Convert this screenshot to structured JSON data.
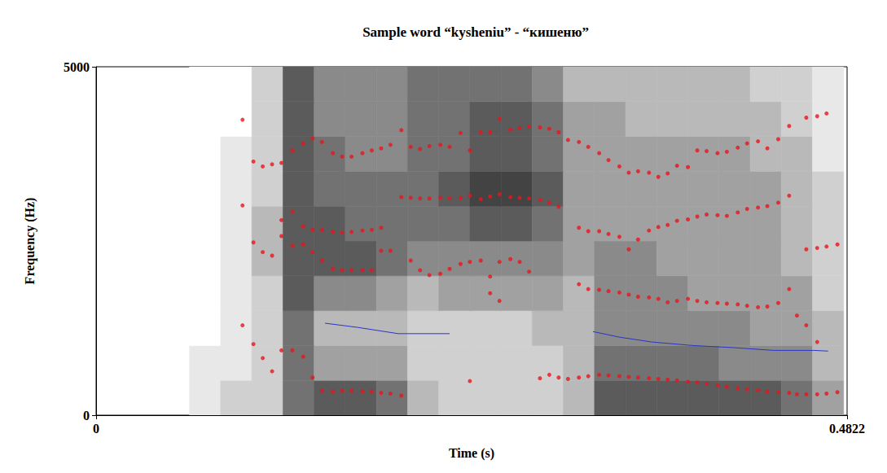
{
  "chart_data": {
    "type": "scatter",
    "title": "Sample word “kysheniu” - “кишеню”",
    "x_label": "Time (s)",
    "y_label": "Frequency (Hz)",
    "xlim": [
      0,
      0.4822
    ],
    "ylim": [
      0,
      5000
    ],
    "xticks": [
      0,
      0.4822
    ],
    "yticks": [
      0,
      5000
    ],
    "grid": false,
    "series": [
      {
        "type": "heatmap",
        "x_edges": [
          0.06,
          0.08,
          0.1,
          0.12,
          0.14,
          0.16,
          0.18,
          0.2,
          0.22,
          0.24,
          0.26,
          0.28,
          0.3,
          0.32,
          0.34,
          0.36,
          0.38,
          0.4,
          0.42,
          0.44,
          0.46,
          0.48
        ],
        "y_edges": [
          0,
          500,
          1000,
          1500,
          2000,
          2500,
          3000,
          3500,
          4000,
          4500,
          5000
        ],
        "value_range": [
          0,
          10
        ],
        "cells": [
          [
            1,
            2,
            2,
            6,
            7,
            7,
            6,
            3,
            2,
            2,
            2,
            2,
            3,
            7,
            7,
            7,
            7,
            7,
            7,
            6,
            4
          ],
          [
            1,
            1,
            2,
            6,
            4,
            4,
            4,
            2,
            2,
            2,
            2,
            2,
            3,
            6,
            6,
            6,
            6,
            5,
            5,
            5,
            3
          ],
          [
            0,
            1,
            2,
            6,
            3,
            3,
            3,
            2,
            2,
            2,
            2,
            3,
            3,
            5,
            5,
            5,
            5,
            5,
            4,
            4,
            3
          ],
          [
            0,
            1,
            2,
            7,
            5,
            5,
            4,
            3,
            4,
            4,
            4,
            4,
            3,
            5,
            5,
            5,
            4,
            4,
            4,
            4,
            2
          ],
          [
            0,
            1,
            3,
            7,
            7,
            7,
            6,
            5,
            5,
            5,
            5,
            5,
            4,
            5,
            5,
            4,
            4,
            4,
            4,
            3,
            2
          ],
          [
            0,
            1,
            3,
            7,
            7,
            6,
            6,
            6,
            6,
            7,
            7,
            6,
            4,
            4,
            4,
            4,
            4,
            4,
            4,
            3,
            2
          ],
          [
            0,
            1,
            2,
            7,
            6,
            6,
            6,
            6,
            7,
            8,
            8,
            7,
            4,
            4,
            4,
            4,
            4,
            4,
            4,
            3,
            2
          ],
          [
            0,
            1,
            2,
            7,
            6,
            5,
            5,
            6,
            6,
            7,
            7,
            6,
            4,
            4,
            4,
            4,
            4,
            4,
            3,
            3,
            1
          ],
          [
            0,
            0,
            2,
            7,
            5,
            5,
            5,
            6,
            6,
            7,
            7,
            6,
            4,
            4,
            3,
            3,
            3,
            3,
            3,
            2,
            1
          ],
          [
            0,
            0,
            2,
            7,
            5,
            5,
            5,
            6,
            6,
            6,
            6,
            5,
            3,
            3,
            3,
            3,
            3,
            3,
            2,
            2,
            1
          ]
        ]
      },
      {
        "type": "scatter",
        "color": "#e8141c",
        "marker": "circle",
        "points": [
          [
            0.094,
            4240
          ],
          [
            0.094,
            3010
          ],
          [
            0.094,
            1290
          ],
          [
            0.101,
            3640
          ],
          [
            0.101,
            2480
          ],
          [
            0.101,
            1020
          ],
          [
            0.107,
            3570
          ],
          [
            0.107,
            2340
          ],
          [
            0.107,
            820
          ],
          [
            0.113,
            3600
          ],
          [
            0.113,
            2290
          ],
          [
            0.113,
            630
          ],
          [
            0.119,
            3620
          ],
          [
            0.119,
            2800
          ],
          [
            0.119,
            2570
          ],
          [
            0.119,
            930
          ],
          [
            0.126,
            3800
          ],
          [
            0.126,
            2920
          ],
          [
            0.126,
            2430
          ],
          [
            0.126,
            930
          ],
          [
            0.133,
            3900
          ],
          [
            0.133,
            2710
          ],
          [
            0.133,
            2450
          ],
          [
            0.133,
            840
          ],
          [
            0.139,
            3970
          ],
          [
            0.139,
            2660
          ],
          [
            0.139,
            2340
          ],
          [
            0.139,
            540
          ],
          [
            0.145,
            350
          ],
          [
            0.152,
            340
          ],
          [
            0.158,
            350
          ],
          [
            0.164,
            350
          ],
          [
            0.171,
            340
          ],
          [
            0.177,
            340
          ],
          [
            0.183,
            320
          ],
          [
            0.189,
            310
          ],
          [
            0.196,
            280
          ],
          [
            0.145,
            2220
          ],
          [
            0.152,
            2100
          ],
          [
            0.158,
            2080
          ],
          [
            0.164,
            2080
          ],
          [
            0.171,
            2080
          ],
          [
            0.177,
            2080
          ],
          [
            0.183,
            2360
          ],
          [
            0.189,
            2360
          ],
          [
            0.145,
            2660
          ],
          [
            0.152,
            2630
          ],
          [
            0.158,
            2620
          ],
          [
            0.164,
            2630
          ],
          [
            0.171,
            2650
          ],
          [
            0.177,
            2660
          ],
          [
            0.183,
            2690
          ],
          [
            0.145,
            3920
          ],
          [
            0.152,
            3760
          ],
          [
            0.158,
            3710
          ],
          [
            0.164,
            3710
          ],
          [
            0.171,
            3760
          ],
          [
            0.177,
            3800
          ],
          [
            0.183,
            3830
          ],
          [
            0.189,
            3880
          ],
          [
            0.196,
            4090
          ],
          [
            0.202,
            2220
          ],
          [
            0.208,
            2080
          ],
          [
            0.214,
            2010
          ],
          [
            0.221,
            2030
          ],
          [
            0.227,
            2100
          ],
          [
            0.234,
            2170
          ],
          [
            0.24,
            2200
          ],
          [
            0.247,
            2220
          ],
          [
            0.253,
            1990
          ],
          [
            0.253,
            1750
          ],
          [
            0.259,
            2200
          ],
          [
            0.259,
            1640
          ],
          [
            0.266,
            2240
          ],
          [
            0.272,
            2200
          ],
          [
            0.278,
            2060
          ],
          [
            0.24,
            490
          ],
          [
            0.196,
            3130
          ],
          [
            0.202,
            3120
          ],
          [
            0.208,
            3110
          ],
          [
            0.214,
            3110
          ],
          [
            0.221,
            3120
          ],
          [
            0.227,
            3110
          ],
          [
            0.234,
            3120
          ],
          [
            0.24,
            3150
          ],
          [
            0.247,
            3100
          ],
          [
            0.253,
            3140
          ],
          [
            0.259,
            3170
          ],
          [
            0.266,
            3130
          ],
          [
            0.272,
            3120
          ],
          [
            0.278,
            3110
          ],
          [
            0.285,
            3090
          ],
          [
            0.291,
            3050
          ],
          [
            0.297,
            2990
          ],
          [
            0.202,
            3850
          ],
          [
            0.208,
            3820
          ],
          [
            0.214,
            3860
          ],
          [
            0.221,
            3880
          ],
          [
            0.227,
            3850
          ],
          [
            0.234,
            4050
          ],
          [
            0.24,
            3800
          ],
          [
            0.247,
            4060
          ],
          [
            0.253,
            4060
          ],
          [
            0.259,
            4250
          ],
          [
            0.266,
            4100
          ],
          [
            0.272,
            4120
          ],
          [
            0.278,
            4140
          ],
          [
            0.285,
            4130
          ],
          [
            0.291,
            4110
          ],
          [
            0.297,
            4060
          ],
          [
            0.303,
            3950
          ],
          [
            0.285,
            530
          ],
          [
            0.291,
            580
          ],
          [
            0.297,
            540
          ],
          [
            0.303,
            520
          ],
          [
            0.31,
            540
          ],
          [
            0.316,
            560
          ],
          [
            0.323,
            580
          ],
          [
            0.329,
            570
          ],
          [
            0.336,
            560
          ],
          [
            0.342,
            550
          ],
          [
            0.348,
            540
          ],
          [
            0.355,
            530
          ],
          [
            0.361,
            520
          ],
          [
            0.367,
            510
          ],
          [
            0.373,
            500
          ],
          [
            0.38,
            480
          ],
          [
            0.386,
            470
          ],
          [
            0.392,
            450
          ],
          [
            0.399,
            430
          ],
          [
            0.405,
            410
          ],
          [
            0.412,
            390
          ],
          [
            0.418,
            370
          ],
          [
            0.425,
            360
          ],
          [
            0.431,
            340
          ],
          [
            0.438,
            330
          ],
          [
            0.445,
            320
          ],
          [
            0.45,
            300
          ],
          [
            0.456,
            300
          ],
          [
            0.463,
            300
          ],
          [
            0.469,
            310
          ],
          [
            0.476,
            330
          ],
          [
            0.31,
            1880
          ],
          [
            0.316,
            1810
          ],
          [
            0.323,
            1800
          ],
          [
            0.329,
            1780
          ],
          [
            0.336,
            1760
          ],
          [
            0.342,
            1730
          ],
          [
            0.348,
            1700
          ],
          [
            0.355,
            1690
          ],
          [
            0.361,
            1670
          ],
          [
            0.367,
            1620
          ],
          [
            0.373,
            1640
          ],
          [
            0.38,
            1670
          ],
          [
            0.386,
            1640
          ],
          [
            0.392,
            1620
          ],
          [
            0.399,
            1610
          ],
          [
            0.405,
            1600
          ],
          [
            0.412,
            1590
          ],
          [
            0.418,
            1570
          ],
          [
            0.425,
            1550
          ],
          [
            0.431,
            1560
          ],
          [
            0.438,
            1610
          ],
          [
            0.445,
            1810
          ],
          [
            0.45,
            1430
          ],
          [
            0.456,
            1290
          ],
          [
            0.463,
            1050
          ],
          [
            0.31,
            2690
          ],
          [
            0.316,
            2640
          ],
          [
            0.323,
            2640
          ],
          [
            0.329,
            2600
          ],
          [
            0.336,
            2560
          ],
          [
            0.342,
            2380
          ],
          [
            0.348,
            2520
          ],
          [
            0.355,
            2650
          ],
          [
            0.361,
            2700
          ],
          [
            0.367,
            2730
          ],
          [
            0.373,
            2790
          ],
          [
            0.38,
            2810
          ],
          [
            0.386,
            2850
          ],
          [
            0.392,
            2880
          ],
          [
            0.399,
            2870
          ],
          [
            0.405,
            2860
          ],
          [
            0.412,
            2910
          ],
          [
            0.418,
            2960
          ],
          [
            0.425,
            2980
          ],
          [
            0.431,
            3000
          ],
          [
            0.438,
            3050
          ],
          [
            0.445,
            3150
          ],
          [
            0.456,
            2380
          ],
          [
            0.463,
            2400
          ],
          [
            0.469,
            2420
          ],
          [
            0.476,
            2450
          ],
          [
            0.31,
            3920
          ],
          [
            0.316,
            3850
          ],
          [
            0.323,
            3760
          ],
          [
            0.329,
            3660
          ],
          [
            0.336,
            3570
          ],
          [
            0.342,
            3480
          ],
          [
            0.348,
            3500
          ],
          [
            0.355,
            3480
          ],
          [
            0.361,
            3420
          ],
          [
            0.367,
            3470
          ],
          [
            0.373,
            3580
          ],
          [
            0.38,
            3560
          ],
          [
            0.386,
            3800
          ],
          [
            0.392,
            3790
          ],
          [
            0.399,
            3760
          ],
          [
            0.405,
            3780
          ],
          [
            0.412,
            3840
          ],
          [
            0.418,
            3900
          ],
          [
            0.425,
            3930
          ],
          [
            0.431,
            3830
          ],
          [
            0.438,
            3960
          ],
          [
            0.445,
            4150
          ],
          [
            0.456,
            4270
          ],
          [
            0.463,
            4290
          ],
          [
            0.469,
            4330
          ]
        ]
      },
      {
        "type": "line",
        "color": "#2a35c8",
        "line_style": "solid",
        "points": [
          [
            0.147,
            1320
          ],
          [
            0.168,
            1260
          ],
          [
            0.194,
            1170
          ],
          [
            0.227,
            1170
          ],
          null,
          [
            0.319,
            1200
          ],
          [
            0.336,
            1120
          ],
          [
            0.357,
            1050
          ],
          [
            0.383,
            1000
          ],
          [
            0.409,
            970
          ],
          [
            0.435,
            930
          ],
          [
            0.461,
            930
          ],
          [
            0.47,
            920
          ]
        ]
      }
    ]
  }
}
